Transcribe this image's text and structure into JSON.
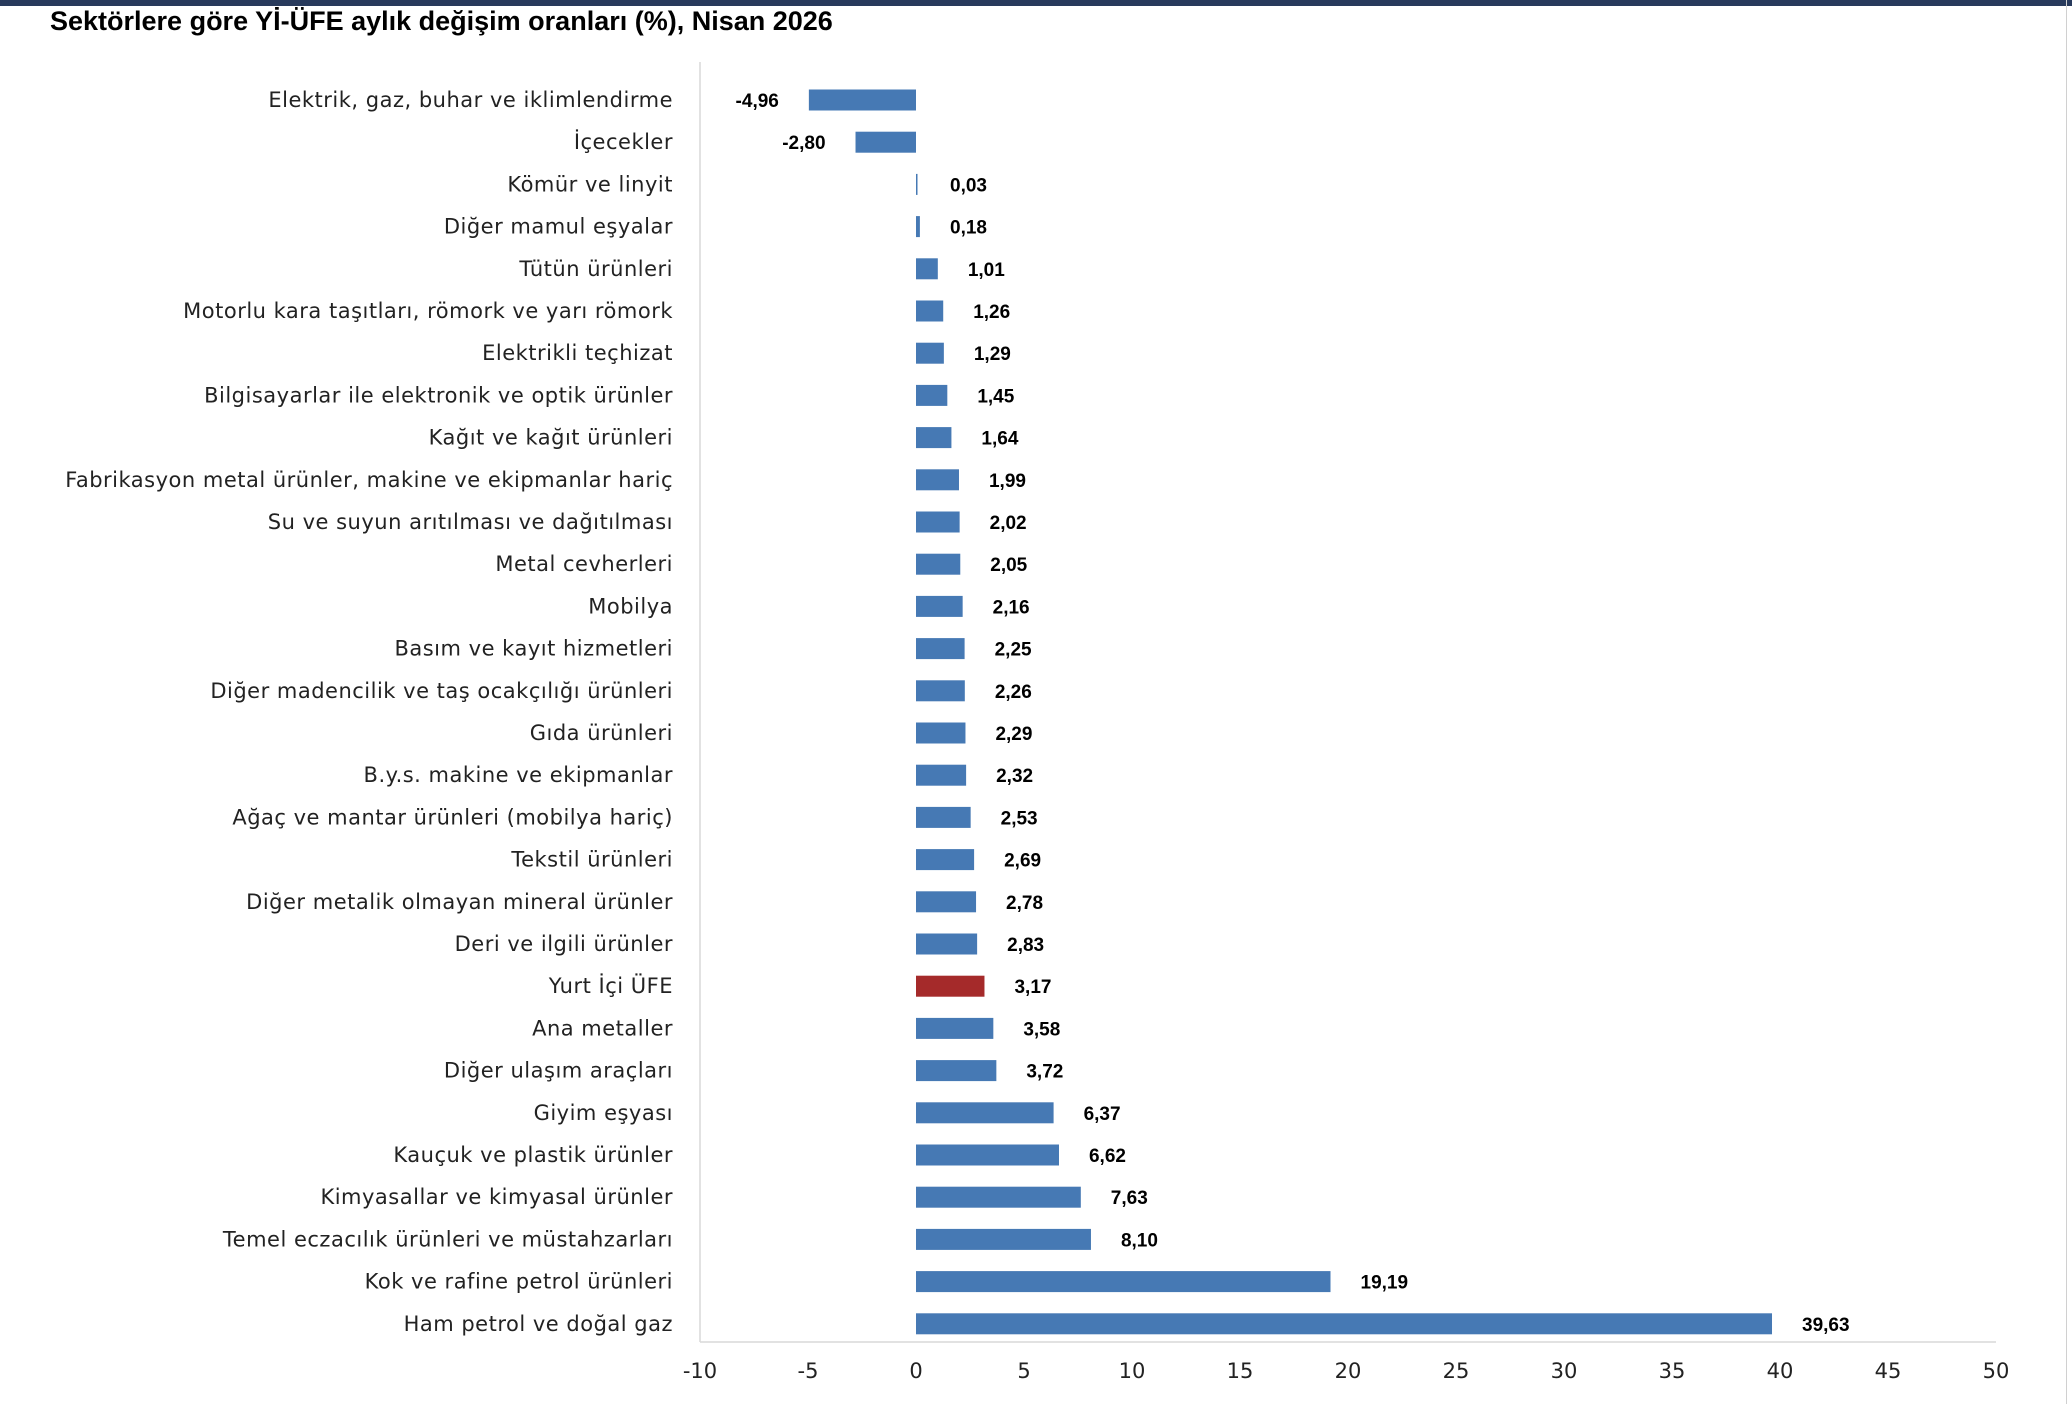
{
  "chart_data": {
    "type": "bar",
    "orientation": "horizontal",
    "title": "Sektörlere göre Yİ-ÜFE aylık değişim oranları (%), Nisan 2026",
    "xlabel": "",
    "ylabel": "",
    "xlim": [
      -10,
      50
    ],
    "x_ticks": [
      "-10",
      "-5",
      "0",
      "5",
      "10",
      "15",
      "20",
      "25",
      "30",
      "35",
      "40",
      "45",
      "50"
    ],
    "grid": false,
    "legend": "none",
    "colors": {
      "default": "#4679b4",
      "highlight": "#a52a2a"
    },
    "highlight_category": "Yurt İçi ÜFE",
    "categories": [
      "Elektrik, gaz, buhar ve iklimlendirme",
      "İçecekler",
      "Kömür ve linyit",
      "Diğer mamul eşyalar",
      "Tütün ürünleri",
      "Motorlu kara taşıtları, römork ve yarı römork",
      "Elektrikli teçhizat",
      "Bilgisayarlar ile elektronik ve optik ürünler",
      "Kağıt ve kağıt ürünleri",
      "Fabrikasyon metal ürünler, makine ve ekipmanlar hariç",
      "Su ve suyun arıtılması ve dağıtılması",
      "Metal cevherleri",
      "Mobilya",
      "Basım ve kayıt hizmetleri",
      "Diğer madencilik ve taş ocakçılığı ürünleri",
      "Gıda ürünleri",
      "B.y.s. makine ve ekipmanlar",
      "Ağaç ve mantar ürünleri (mobilya hariç)",
      "Tekstil ürünleri",
      "Diğer metalik olmayan mineral ürünler",
      "Deri ve ilgili ürünler",
      "Yurt İçi ÜFE",
      "Ana metaller",
      "Diğer ulaşım araçları",
      "Giyim eşyası",
      "Kauçuk ve plastik ürünler",
      "Kimyasallar ve kimyasal ürünler",
      "Temel eczacılık ürünleri ve müstahzarları",
      "Kok ve rafine petrol ürünleri",
      "Ham petrol ve doğal gaz"
    ],
    "values": [
      -4.96,
      -2.8,
      0.03,
      0.18,
      1.01,
      1.26,
      1.29,
      1.45,
      1.64,
      1.99,
      2.02,
      2.05,
      2.16,
      2.25,
      2.26,
      2.29,
      2.32,
      2.53,
      2.69,
      2.78,
      2.83,
      3.17,
      3.58,
      3.72,
      6.37,
      6.62,
      7.63,
      8.1,
      19.19,
      39.63
    ],
    "value_labels": [
      "-4,96",
      "-2,80",
      "0,03",
      "0,18",
      "1,01",
      "1,26",
      "1,29",
      "1,45",
      "1,64",
      "1,99",
      "2,02",
      "2,05",
      "2,16",
      "2,25",
      "2,26",
      "2,29",
      "2,32",
      "2,53",
      "2,69",
      "2,78",
      "2,83",
      "3,17",
      "3,58",
      "3,72",
      "6,37",
      "6,62",
      "7,63",
      "8,10",
      "19,19",
      "39,63"
    ]
  }
}
